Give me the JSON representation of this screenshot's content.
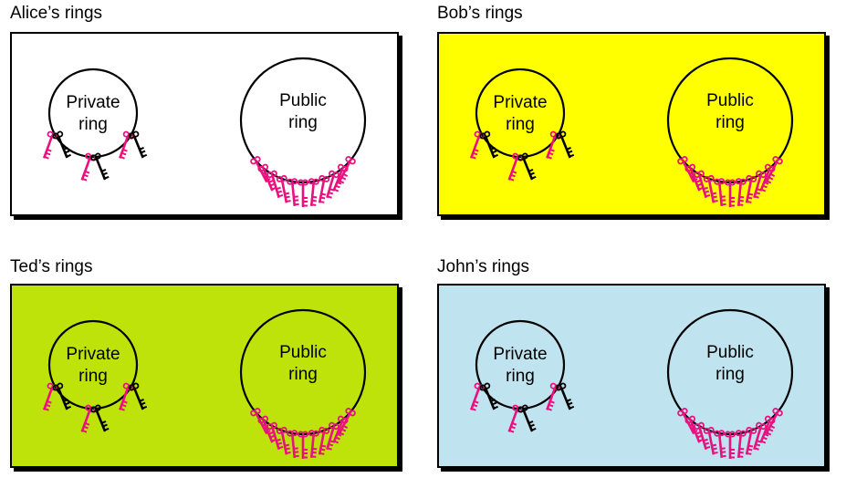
{
  "panels": [
    {
      "caption": "Alice’s rings",
      "bg": "#ffffff",
      "private_label": [
        "Private",
        "ring"
      ],
      "public_label": [
        "Public",
        "ring"
      ]
    },
    {
      "caption": "Bob’s rings",
      "bg": "#ffff00",
      "private_label": [
        "Private",
        "ring"
      ],
      "public_label": [
        "Public",
        "ring"
      ]
    },
    {
      "caption": "Ted’s rings",
      "bg": "#bde30a",
      "private_label": [
        "Private",
        "ring"
      ],
      "public_label": [
        "Public",
        "ring"
      ]
    },
    {
      "caption": "John’s rings",
      "bg": "#bfe4f0",
      "private_label": [
        "Private",
        "ring"
      ],
      "public_label": [
        "Public",
        "ring"
      ]
    }
  ],
  "colors": {
    "public_key": "#e8117f",
    "private_key": "#000000",
    "ring_stroke": "#000000"
  },
  "icons": {
    "key": "key-icon",
    "ring": "key-ring-icon"
  }
}
